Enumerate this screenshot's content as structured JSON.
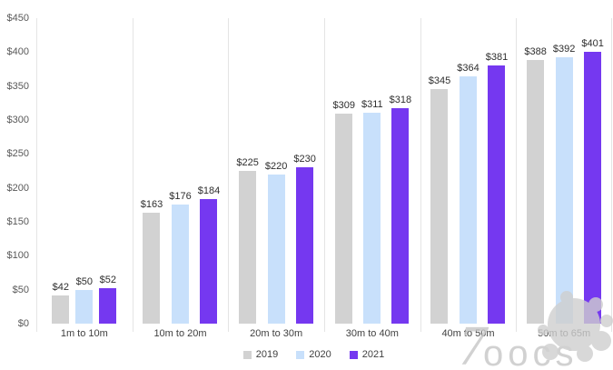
{
  "chart_data": {
    "type": "bar",
    "title": "",
    "xlabel": "",
    "ylabel": "",
    "categories": [
      "1m to 10m",
      "10m to 20m",
      "20m to 30m",
      "30m to 40m",
      "40m to 50m",
      "50m to 65m"
    ],
    "series": [
      {
        "name": "2019",
        "color": "#d2d2d2",
        "values": [
          42,
          163,
          225,
          309,
          345,
          388
        ],
        "labels": [
          "$42",
          "$163",
          "$225",
          "$309",
          "$345",
          "$388"
        ]
      },
      {
        "name": "2020",
        "color": "#c8e0fb",
        "values": [
          50,
          176,
          220,
          311,
          364,
          392
        ],
        "labels": [
          "$50",
          "$176",
          "$220",
          "$311",
          "$364",
          "$392"
        ]
      },
      {
        "name": "2021",
        "color": "#7538f0",
        "values": [
          52,
          184,
          230,
          318,
          381,
          401
        ],
        "labels": [
          "$52",
          "$184",
          "$230",
          "$318",
          "$381",
          "$401"
        ]
      }
    ],
    "ylim": [
      0,
      450
    ],
    "ytick_step": 50,
    "ytick_labels": [
      "$0",
      "$50",
      "$100",
      "$150",
      "$200",
      "$250",
      "$300",
      "$350",
      "$400",
      "$450"
    ],
    "legend_position": "bottom",
    "gridlines": "vertical category dividers only"
  },
  "watermark": {
    "text": "7oocs"
  },
  "colors": {
    "background": "#ffffff",
    "divider": "#e4e4e4",
    "axis_text": "#595959",
    "value_label_text": "#2e2e2e",
    "category_text": "#404040",
    "watermark": "#c6c6c6",
    "series_2019": "#d2d2d2",
    "series_2020": "#c8e0fb",
    "series_2021": "#7538f0"
  }
}
